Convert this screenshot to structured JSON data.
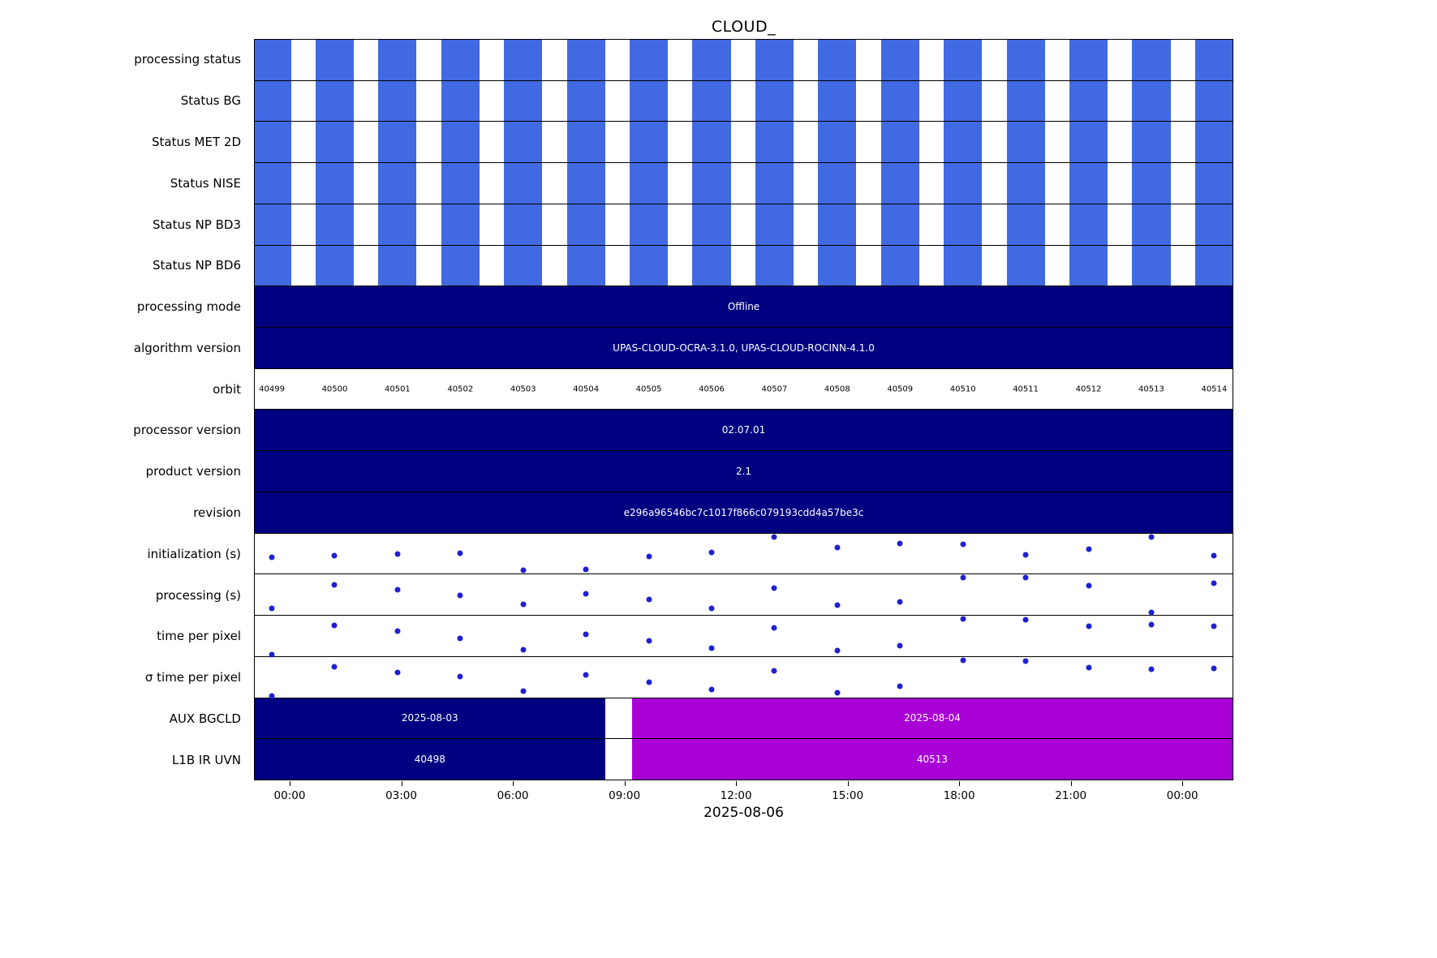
{
  "title": "CLOUD_",
  "xlabel": "2025-08-06",
  "colors": {
    "stripe_blue": "#4169E1",
    "navy": "#000080",
    "magenta": "#A800D5",
    "dot_blue": "#2020D0",
    "border": "#000000",
    "text_on_dark": "#FFFFFF",
    "text": "#000000"
  },
  "chart_data": {
    "type": "table",
    "subtype": "status-timeline",
    "title": "CLOUD_",
    "xlabel": "2025-08-06",
    "x_axis": {
      "ticks": [
        "00:00",
        "03:00",
        "06:00",
        "09:00",
        "12:00",
        "15:00",
        "18:00",
        "21:00",
        "00:00"
      ],
      "tick_hours": [
        0,
        3,
        6,
        9,
        12,
        15,
        18,
        21,
        24
      ],
      "range_hours": [
        -0.96,
        25.37
      ],
      "grid": false
    },
    "orbit_numbers": [
      40499,
      40500,
      40501,
      40502,
      40503,
      40504,
      40505,
      40506,
      40507,
      40508,
      40509,
      40510,
      40511,
      40512,
      40513,
      40514
    ],
    "orbit_geometry": {
      "first_center_hour": -0.5,
      "period_hours": 1.6917,
      "bar_width_hours": 1.03
    },
    "scatter_value_scale": "relative row height 0-1 (no y-axis labels shown)",
    "rows": [
      {
        "label": "processing status",
        "type": "stripes"
      },
      {
        "label": "Status BG",
        "type": "stripes"
      },
      {
        "label": "Status MET 2D",
        "type": "stripes"
      },
      {
        "label": "Status NISE",
        "type": "stripes"
      },
      {
        "label": "Status NP BD3",
        "type": "stripes"
      },
      {
        "label": "Status NP BD6",
        "type": "stripes"
      },
      {
        "label": "processing mode",
        "type": "bar",
        "value": "Offline"
      },
      {
        "label": "algorithm version",
        "type": "bar",
        "value": "UPAS-CLOUD-OCRA-3.1.0, UPAS-CLOUD-ROCINN-4.1.0"
      },
      {
        "label": "orbit",
        "type": "orbit-labels"
      },
      {
        "label": "processor version",
        "type": "bar",
        "value": "02.07.01"
      },
      {
        "label": "product version",
        "type": "bar",
        "value": "2.1"
      },
      {
        "label": "revision",
        "type": "bar",
        "value": "e296a96546bc7c1017f866c079193cdd4a57be3c"
      },
      {
        "label": "initialization (s)",
        "type": "scatter",
        "values": [
          0.41,
          0.45,
          0.49,
          0.51,
          0.08,
          0.1,
          0.43,
          0.53,
          0.92,
          0.65,
          0.76,
          0.73,
          0.47,
          0.61,
          0.92,
          0.45
        ]
      },
      {
        "label": "processing (s)",
        "type": "scatter",
        "values": [
          0.16,
          0.75,
          0.63,
          0.49,
          0.27,
          0.53,
          0.39,
          0.16,
          0.67,
          0.24,
          0.33,
          0.92,
          0.92,
          0.73,
          0.06,
          0.78
        ]
      },
      {
        "label": "time per pixel",
        "type": "scatter",
        "values": [
          0.04,
          0.76,
          0.62,
          0.44,
          0.16,
          0.54,
          0.38,
          0.2,
          0.7,
          0.14,
          0.26,
          0.92,
          0.9,
          0.74,
          0.78,
          0.74
        ]
      },
      {
        "label": "σ time per pixel",
        "type": "scatter",
        "values": [
          0.04,
          0.76,
          0.62,
          0.52,
          0.16,
          0.56,
          0.38,
          0.2,
          0.66,
          0.12,
          0.28,
          0.92,
          0.9,
          0.74,
          0.7,
          0.72
        ]
      },
      {
        "label": "AUX BGCLD",
        "type": "split",
        "segments": [
          {
            "value": "2025-08-03",
            "color": "navy",
            "start_hour": -0.96,
            "end_hour": 8.47
          },
          {
            "value": "2025-08-04",
            "color": "magenta",
            "start_hour": 9.2,
            "end_hour": 25.37
          }
        ]
      },
      {
        "label": "L1B IR UVN",
        "type": "split",
        "segments": [
          {
            "value": "40498",
            "color": "navy",
            "start_hour": -0.96,
            "end_hour": 8.47
          },
          {
            "value": "40513",
            "color": "magenta",
            "start_hour": 9.2,
            "end_hour": 25.37
          }
        ]
      }
    ]
  }
}
